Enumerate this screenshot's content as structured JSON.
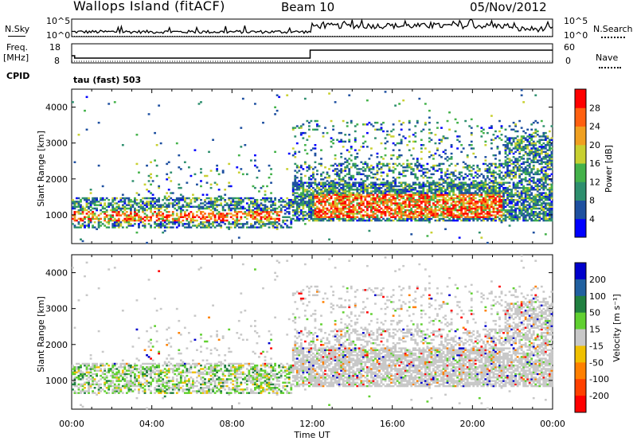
{
  "header": {
    "title": "Wallops Island (fitACF)",
    "beam": "Beam 10",
    "date": "05/Nov/2012"
  },
  "top_panels": {
    "nsky_label": "N.Sky",
    "nsearch_label": "N.Search",
    "noise_ticks": [
      "10^5",
      "10^0"
    ],
    "freq_label": "Freq.",
    "freq_unit": "[MHz]",
    "freq_ticks": [
      "18",
      "8"
    ],
    "nave_label": "Nave",
    "nave_ticks": [
      "60",
      "0"
    ],
    "cpid_label": "CPID",
    "cpid_value": "tau (fast) 503"
  },
  "chart_data": [
    {
      "type": "heatmap",
      "name": "power",
      "xlabel": "",
      "ylabel": "Slant Range [km]",
      "xlim": [
        0,
        24
      ],
      "ylim": [
        200,
        4500
      ],
      "yticks": [
        "1000",
        "2000",
        "3000",
        "4000"
      ],
      "colorbar": {
        "label": "Power [dB]",
        "ticks": [
          "4",
          "8",
          "12",
          "16",
          "20",
          "24",
          "28"
        ],
        "colors": [
          "#0000ff",
          "#1e50a0",
          "#2e8f6e",
          "#44b24a",
          "#c8d030",
          "#f0a020",
          "#ff6010",
          "#ff0000"
        ]
      }
    },
    {
      "type": "heatmap",
      "name": "velocity",
      "xlabel": "Time UT",
      "ylabel": "Slant Range [km]",
      "xlim": [
        0,
        24
      ],
      "ylim": [
        200,
        4500
      ],
      "xticks": [
        "00:00",
        "04:00",
        "08:00",
        "12:00",
        "16:00",
        "20:00",
        "00:00"
      ],
      "yticks": [
        "1000",
        "2000",
        "3000",
        "4000"
      ],
      "colorbar": {
        "label": "Velocity [m s⁻¹]",
        "ticks": [
          "200",
          "100",
          "50",
          "15",
          "-15",
          "-50",
          "-100",
          "-200"
        ],
        "colors": [
          "#0000cc",
          "#2060a0",
          "#208040",
          "#60d030",
          "#c8c8c8",
          "#f0c000",
          "#ff8000",
          "#ff4000",
          "#ff0000"
        ]
      }
    }
  ]
}
